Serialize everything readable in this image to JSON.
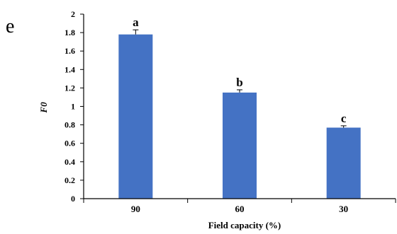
{
  "panel_label": "e",
  "chart_data": {
    "type": "bar",
    "categories": [
      "90",
      "60",
      "30"
    ],
    "values": [
      1.78,
      1.15,
      0.77
    ],
    "errors": [
      0.05,
      0.03,
      0.02
    ],
    "significance_letters": [
      "a",
      "b",
      "c"
    ],
    "xlabel": "Field capacity (%)",
    "ylabel": "F0",
    "ylim": [
      0,
      2
    ],
    "yticks": [
      0,
      0.2,
      0.4,
      0.6,
      0.8,
      1,
      1.2,
      1.4,
      1.6,
      1.8,
      2
    ],
    "ytick_labels": [
      "0",
      "0.2",
      "0.4",
      "0.6",
      "0.8",
      "1",
      "1.2",
      "1.4",
      "1.6",
      "1.8",
      "2"
    ],
    "grid": false,
    "bar_color": "#4472C4",
    "axis_color": "#000000"
  }
}
